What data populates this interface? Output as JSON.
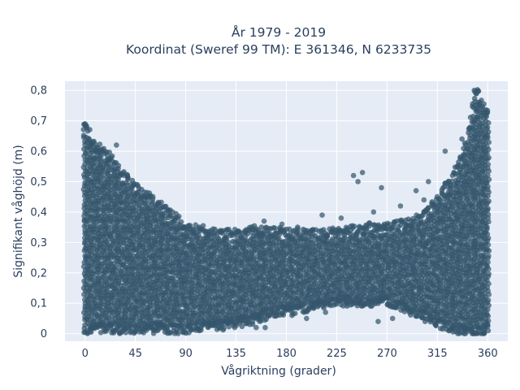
{
  "chart_data": {
    "type": "scatter",
    "title_line1": "År 1979 - 2019",
    "title_line2": "Koordinat (Sweref 99 TM): E 361346, N 6233735",
    "xlabel": "Vågriktning (grader)",
    "ylabel": "Signifikant våghöjd (m)",
    "xlim": [
      -18,
      378
    ],
    "ylim": [
      -0.025,
      0.83
    ],
    "xticks": [
      0,
      45,
      90,
      135,
      180,
      225,
      270,
      315,
      360
    ],
    "xtick_labels": [
      "0",
      "45",
      "90",
      "135",
      "180",
      "225",
      "270",
      "315",
      "360"
    ],
    "yticks": [
      0,
      0.1,
      0.2,
      0.3,
      0.4,
      0.5,
      0.6,
      0.7,
      0.8
    ],
    "ytick_labels": [
      "0",
      "0,1",
      "0,2",
      "0,3",
      "0,4",
      "0,5",
      "0,6",
      "0,7",
      "0,8"
    ],
    "grid": true,
    "marker_color": "#34566c",
    "plot_background": "#e5ecf6",
    "envelope": {
      "direction": [
        0,
        10,
        20,
        30,
        45,
        60,
        75,
        90,
        105,
        120,
        135,
        150,
        165,
        180,
        195,
        210,
        225,
        240,
        255,
        270,
        285,
        300,
        315,
        330,
        340,
        345,
        350,
        355,
        360
      ],
      "upper_height": [
        0.66,
        0.6,
        0.57,
        0.52,
        0.46,
        0.42,
        0.38,
        0.33,
        0.32,
        0.31,
        0.31,
        0.32,
        0.32,
        0.31,
        0.31,
        0.31,
        0.32,
        0.32,
        0.33,
        0.33,
        0.34,
        0.36,
        0.42,
        0.5,
        0.6,
        0.68,
        0.78,
        0.74,
        0.7
      ],
      "lower_height": [
        0.03,
        0.03,
        0.03,
        0.03,
        0.03,
        0.03,
        0.03,
        0.03,
        0.04,
        0.04,
        0.05,
        0.06,
        0.08,
        0.09,
        0.1,
        0.11,
        0.12,
        0.12,
        0.12,
        0.12,
        0.1,
        0.08,
        0.05,
        0.03,
        0.02,
        0.02,
        0.02,
        0.02,
        0.03
      ]
    },
    "outliers": [
      {
        "x": 0,
        "y": 0.69
      },
      {
        "x": 1,
        "y": 0.68
      },
      {
        "x": 28,
        "y": 0.62
      },
      {
        "x": 153,
        "y": 0.02
      },
      {
        "x": 161,
        "y": 0.02
      },
      {
        "x": 248,
        "y": 0.53
      },
      {
        "x": 240,
        "y": 0.52
      },
      {
        "x": 244,
        "y": 0.5
      },
      {
        "x": 265,
        "y": 0.48
      },
      {
        "x": 296,
        "y": 0.47
      },
      {
        "x": 307,
        "y": 0.5
      },
      {
        "x": 322,
        "y": 0.6
      },
      {
        "x": 337,
        "y": 0.64
      },
      {
        "x": 348,
        "y": 0.8
      },
      {
        "x": 350,
        "y": 0.79
      },
      {
        "x": 303,
        "y": 0.44
      },
      {
        "x": 275,
        "y": 0.05
      },
      {
        "x": 290,
        "y": 0.07
      },
      {
        "x": 262,
        "y": 0.04
      },
      {
        "x": 304,
        "y": 0.04
      },
      {
        "x": 185,
        "y": 0.06
      },
      {
        "x": 198,
        "y": 0.05
      },
      {
        "x": 215,
        "y": 0.07
      },
      {
        "x": 160,
        "y": 0.37
      },
      {
        "x": 176,
        "y": 0.36
      },
      {
        "x": 190,
        "y": 0.35
      },
      {
        "x": 212,
        "y": 0.39
      },
      {
        "x": 229,
        "y": 0.38
      },
      {
        "x": 258,
        "y": 0.4
      },
      {
        "x": 282,
        "y": 0.42
      },
      {
        "x": 25,
        "y": 0.01
      },
      {
        "x": 340,
        "y": 0.01
      }
    ]
  }
}
